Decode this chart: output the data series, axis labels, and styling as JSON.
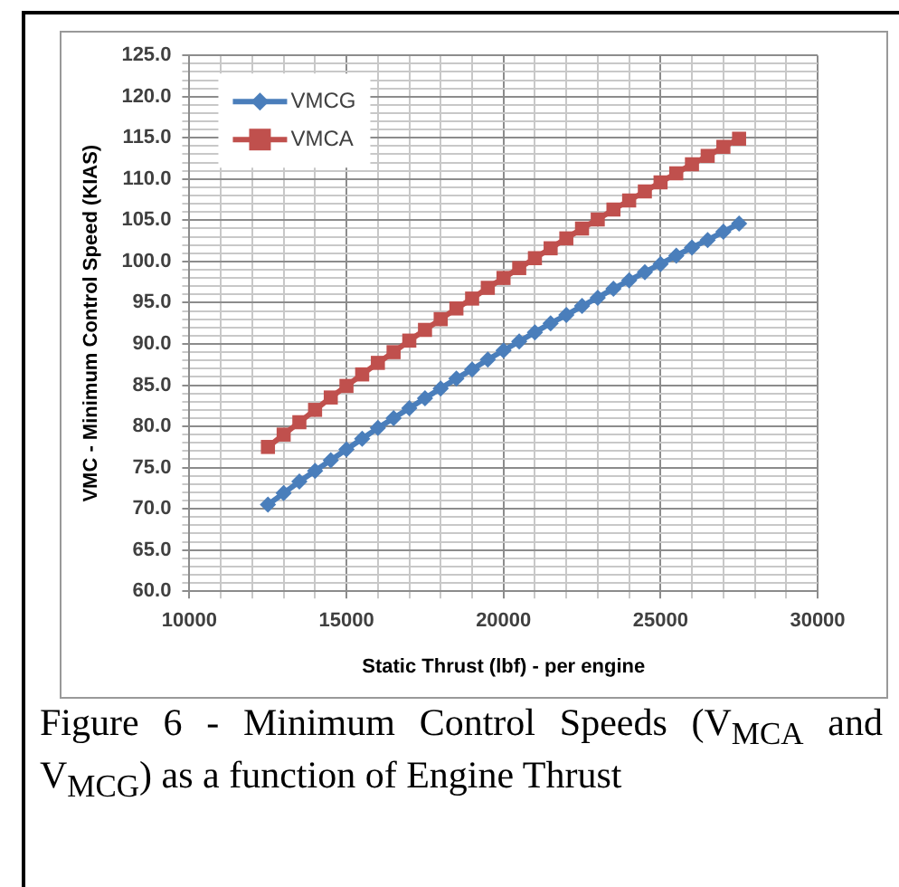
{
  "chart_data": {
    "type": "line",
    "xlabel": "Static Thrust (lbf) - per engine",
    "ylabel": "VMC - Minimum Control Speed (KIAS)",
    "annotations": [
      "Figure 6 - Minimum Control Speeds (V$_{MCA}$ and V$_{MCG}$) as a function of Engine Thrust"
    ],
    "x": [
      12500,
      13000,
      13500,
      14000,
      14500,
      15000,
      15500,
      16000,
      16500,
      17000,
      17500,
      18000,
      18500,
      19000,
      19500,
      20000,
      20500,
      21000,
      21500,
      22000,
      22500,
      23000,
      23500,
      24000,
      24500,
      25000,
      25500,
      26000,
      26500,
      27000,
      27500
    ],
    "series": [
      {
        "name": "VMCG",
        "color": "#4a7ebb",
        "marker": "diamond",
        "values": [
          70.5,
          71.9,
          73.3,
          74.6,
          75.9,
          77.2,
          78.5,
          79.8,
          81.0,
          82.2,
          83.4,
          84.6,
          85.8,
          86.9,
          88.1,
          89.2,
          90.3,
          91.4,
          92.5,
          93.5,
          94.6,
          95.6,
          96.7,
          97.7,
          98.7,
          99.7,
          100.7,
          101.7,
          102.6,
          103.6,
          104.6
        ]
      },
      {
        "name": "VMCA",
        "color": "#c0504d",
        "marker": "square",
        "values": [
          77.5,
          79.0,
          80.5,
          82.0,
          83.5,
          84.9,
          86.3,
          87.7,
          89.0,
          90.4,
          91.7,
          93.0,
          94.3,
          95.5,
          96.8,
          98.0,
          99.2,
          100.4,
          101.6,
          102.8,
          104.0,
          105.1,
          106.3,
          107.4,
          108.5,
          109.6,
          110.7,
          111.8,
          112.8,
          113.9,
          114.9
        ]
      }
    ],
    "xlim": [
      10000,
      30000
    ],
    "xticks": [
      10000,
      {
        "value": 11000,
        "label": null
      },
      {
        "value": 12000,
        "label": null
      },
      {
        "value": 13000,
        "label": null
      },
      {
        "value": 14000,
        "label": null
      },
      15000,
      {
        "value": 16000,
        "label": null
      },
      {
        "value": 17000,
        "label": null
      },
      {
        "value": 18000,
        "label": null
      },
      {
        "value": 19000,
        "label": null
      },
      20000,
      {
        "value": 21000,
        "label": null
      },
      {
        "value": 22000,
        "label": null
      },
      {
        "value": 23000,
        "label": null
      },
      {
        "value": 24000,
        "label": null
      },
      25000,
      {
        "value": 26000,
        "label": null
      },
      {
        "value": 27000,
        "label": null
      },
      {
        "value": 28000,
        "label": null
      },
      {
        "value": 29000,
        "label": null
      },
      30000
    ],
    "ylim": [
      60,
      125
    ],
    "yticks": [
      {
        "value": 60,
        "label": "60.0"
      },
      {
        "value": 61,
        "label": null
      },
      {
        "value": 62,
        "label": null
      },
      {
        "value": 63,
        "label": null
      },
      {
        "value": 64,
        "label": null
      },
      {
        "value": 65,
        "label": "65.0"
      },
      {
        "value": 66,
        "label": null
      },
      {
        "value": 67,
        "label": null
      },
      {
        "value": 68,
        "label": null
      },
      {
        "value": 69,
        "label": null
      },
      {
        "value": 70,
        "label": "70.0"
      },
      {
        "value": 71,
        "label": null
      },
      {
        "value": 72,
        "label": null
      },
      {
        "value": 73,
        "label": null
      },
      {
        "value": 74,
        "label": null
      },
      {
        "value": 75,
        "label": "75.0"
      },
      {
        "value": 76,
        "label": null
      },
      {
        "value": 77,
        "label": null
      },
      {
        "value": 78,
        "label": null
      },
      {
        "value": 79,
        "label": null
      },
      {
        "value": 80,
        "label": "80.0"
      },
      {
        "value": 81,
        "label": null
      },
      {
        "value": 82,
        "label": null
      },
      {
        "value": 83,
        "label": null
      },
      {
        "value": 84,
        "label": null
      },
      {
        "value": 85,
        "label": "85.0"
      },
      {
        "value": 86,
        "label": null
      },
      {
        "value": 87,
        "label": null
      },
      {
        "value": 88,
        "label": null
      },
      {
        "value": 89,
        "label": null
      },
      {
        "value": 90,
        "label": "90.0"
      },
      {
        "value": 91,
        "label": null
      },
      {
        "value": 92,
        "label": null
      },
      {
        "value": 93,
        "label": null
      },
      {
        "value": 94,
        "label": null
      },
      {
        "value": 95,
        "label": "95.0"
      },
      {
        "value": 96,
        "label": null
      },
      {
        "value": 97,
        "label": null
      },
      {
        "value": 98,
        "label": null
      },
      {
        "value": 99,
        "label": null
      },
      {
        "value": 100,
        "label": "100.0"
      },
      {
        "value": 101,
        "label": null
      },
      {
        "value": 102,
        "label": null
      },
      {
        "value": 103,
        "label": null
      },
      {
        "value": 104,
        "label": null
      },
      {
        "value": 105,
        "label": "105.0"
      },
      {
        "value": 106,
        "label": null
      },
      {
        "value": 107,
        "label": null
      },
      {
        "value": 108,
        "label": null
      },
      {
        "value": 109,
        "label": null
      },
      {
        "value": 110,
        "label": "110.0"
      },
      {
        "value": 111,
        "label": null
      },
      {
        "value": 112,
        "label": null
      },
      {
        "value": 113,
        "label": null
      },
      {
        "value": 114,
        "label": null
      },
      {
        "value": 115,
        "label": "115.0"
      },
      {
        "value": 116,
        "label": null
      },
      {
        "value": 117,
        "label": null
      },
      {
        "value": 118,
        "label": null
      },
      {
        "value": 119,
        "label": null
      },
      {
        "value": 120,
        "label": "120.0"
      },
      {
        "value": 121,
        "label": null
      },
      {
        "value": 122,
        "label": null
      },
      {
        "value": 123,
        "label": null
      },
      {
        "value": 124,
        "label": null
      },
      {
        "value": 125,
        "label": "125.0"
      }
    ],
    "grid": true,
    "legend": "top left",
    "line_style": "solid"
  }
}
